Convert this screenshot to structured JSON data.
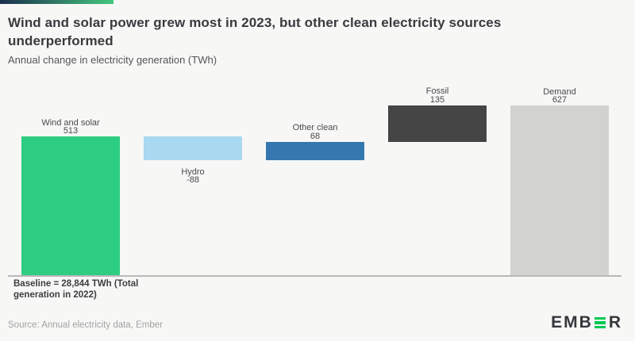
{
  "page": {
    "background": "#f7f7f6"
  },
  "header": {
    "title": "Wind and solar power grew most in 2023, but other clean electricity sources underperformed",
    "subtitle": "Annual change in electricity generation (TWh)",
    "accent_gradient": [
      "#1d2e4e",
      "#41c87d"
    ]
  },
  "chart_data": {
    "type": "bar",
    "variant": "waterfall",
    "title": "Wind and solar power grew most in 2023, but other clean electricity sources underperformed",
    "subtitle": "Annual change in electricity generation (TWh)",
    "unit": "TWh",
    "categories": [
      "Wind and solar",
      "Hydro",
      "Other clean",
      "Fossil",
      "Demand"
    ],
    "values": [
      513,
      -88,
      68,
      135,
      627
    ],
    "bars": [
      {
        "label": "Wind and solar",
        "value": 513,
        "display_value": "513",
        "from": 0,
        "to": 513,
        "color": "#2dce81",
        "label_position": "above"
      },
      {
        "label": "Hydro",
        "value": -88,
        "display_value": "-88",
        "from": 513,
        "to": 425,
        "color": "#a9d8f1",
        "label_position": "below"
      },
      {
        "label": "Other clean",
        "value": 68,
        "display_value": "68",
        "from": 425,
        "to": 493,
        "color": "#3478af",
        "label_position": "above"
      },
      {
        "label": "Fossil",
        "value": 135,
        "display_value": "135",
        "from": 493,
        "to": 628,
        "color": "#454545",
        "label_position": "above"
      },
      {
        "label": "Demand",
        "value": 627,
        "display_value": "627",
        "from": 0,
        "to": 627,
        "color": "#d2d2d1",
        "label_position": "above"
      }
    ],
    "baseline_note": "Baseline = 28,844 TWh (Total generation in 2022)",
    "baseline_value_twh": 28844,
    "ylim": [
      0,
      628
    ],
    "grid": false,
    "legend": false
  },
  "footer": {
    "source": "Source: Annual electricity data, Ember",
    "logo": {
      "brand": "EMBER",
      "prefix": "EMB",
      "suffix": "R",
      "green": "#00c853",
      "dark": "#34373b"
    }
  }
}
